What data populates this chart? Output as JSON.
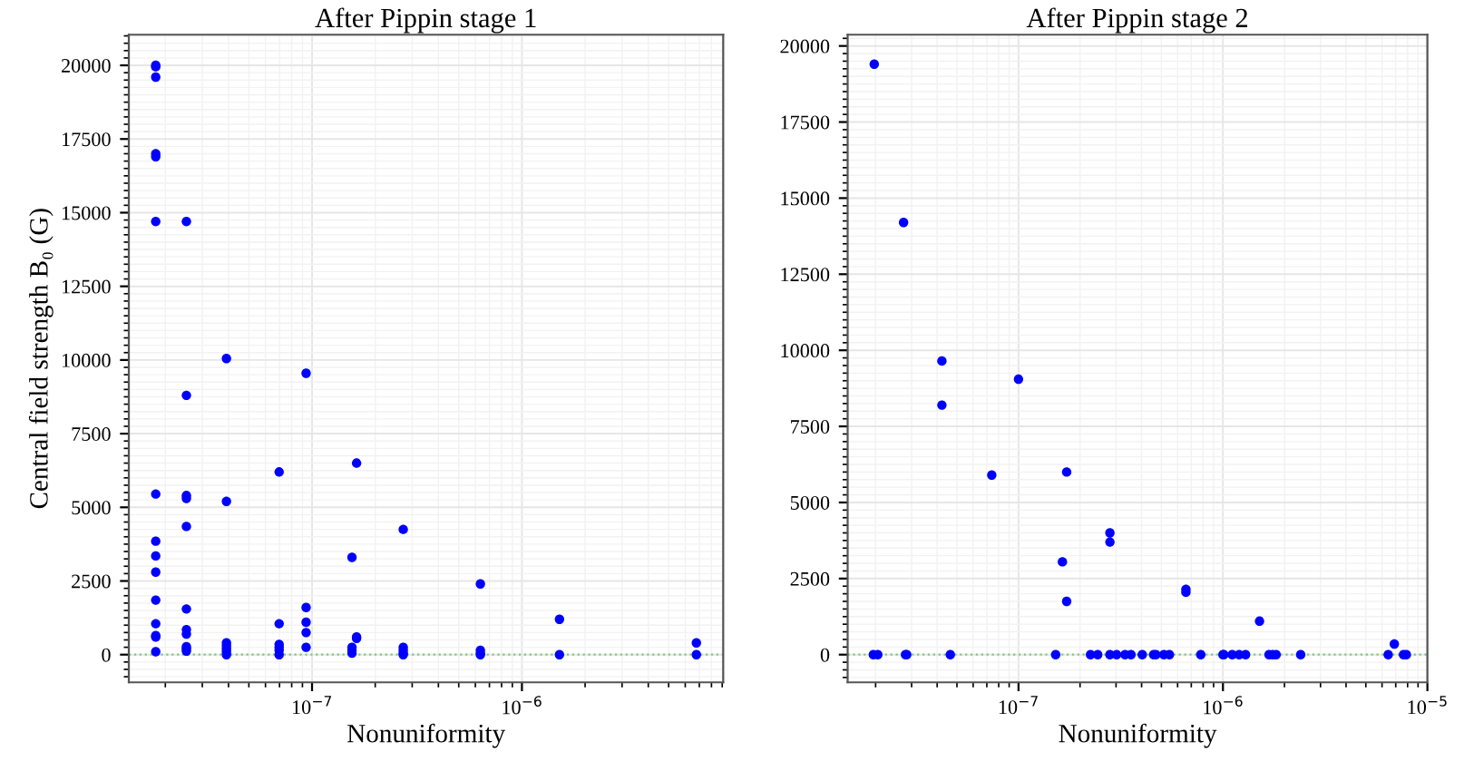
{
  "chart_data": [
    {
      "type": "scatter",
      "title": "After Pippin stage 1",
      "xlabel": "Nonuniformity",
      "ylabel": "Central field strength B₀ (G)",
      "log": "x",
      "grid": true,
      "marker": "circle",
      "xlim": [
        1.34e-08,
        9.1e-06
      ],
      "ylim": [
        -940,
        21040
      ],
      "xticks": [
        {
          "value": 1e-07,
          "label": "10$^{−7}$"
        },
        {
          "value": 1e-06,
          "label": "10$^{−6}$"
        }
      ],
      "yticks": [
        0,
        2500,
        5000,
        7500,
        10000,
        12500,
        15000,
        17500,
        20000
      ],
      "ref_lines": [
        {
          "axis": "y",
          "value": 0,
          "color": "#7fc97f",
          "line_style": "dotted"
        }
      ],
      "series": [
        {
          "color": "#0000ff",
          "x": [
            1.8e-08,
            1.8e-08,
            1.8e-08,
            1.8e-08,
            1.8e-08,
            1.8e-08,
            1.8e-08,
            1.8e-08,
            1.8e-08,
            1.8e-08,
            1.8e-08,
            1.8e-08,
            1.8e-08,
            1.8e-08,
            1.8e-08,
            2.52e-08,
            2.52e-08,
            2.52e-08,
            2.52e-08,
            2.52e-08,
            2.52e-08,
            2.52e-08,
            2.52e-08,
            2.52e-08,
            2.52e-08,
            2.52e-08,
            3.91e-08,
            3.91e-08,
            3.91e-08,
            3.91e-08,
            3.91e-08,
            3.91e-08,
            3.91e-08,
            6.97e-08,
            6.97e-08,
            6.97e-08,
            6.97e-08,
            6.97e-08,
            6.97e-08,
            9.37e-08,
            9.37e-08,
            9.37e-08,
            9.37e-08,
            9.37e-08,
            1.55e-07,
            1.55e-07,
            1.55e-07,
            1.55e-07,
            1.63e-07,
            1.63e-07,
            1.63e-07,
            2.72e-07,
            2.72e-07,
            2.72e-07,
            2.72e-07,
            2.72e-07,
            6.34e-07,
            6.34e-07,
            6.34e-07,
            6.34e-07,
            1.51e-06,
            1.51e-06,
            6.78e-06,
            6.78e-06
          ],
          "values": [
            20000,
            19950,
            19600,
            17000,
            16900,
            14700,
            5450,
            3850,
            3350,
            2800,
            1850,
            1050,
            650,
            600,
            100,
            14700,
            8800,
            5400,
            5300,
            4350,
            1550,
            850,
            700,
            270,
            200,
            120,
            10050,
            5200,
            400,
            300,
            200,
            100,
            0,
            6200,
            1050,
            350,
            250,
            150,
            0,
            9550,
            1600,
            1100,
            750,
            250,
            3300,
            250,
            150,
            50,
            6500,
            600,
            550,
            4250,
            250,
            150,
            50,
            0,
            2400,
            150,
            50,
            0,
            1200,
            0,
            400,
            0
          ]
        }
      ]
    },
    {
      "type": "scatter",
      "title": "After Pippin stage 2",
      "xlabel": "Nonuniformity",
      "log": "x",
      "grid": true,
      "marker": "circle",
      "xlim": [
        1.46e-08,
        1e-05
      ],
      "ylim": [
        -910,
        20370
      ],
      "xticks": [
        {
          "value": 1e-07,
          "label": "10$^{−7}$"
        },
        {
          "value": 1e-06,
          "label": "10$^{−6}$"
        },
        {
          "value": 1e-05,
          "label": "10$^{−5}$"
        }
      ],
      "yticks": [
        0,
        2500,
        5000,
        7500,
        10000,
        12500,
        15000,
        17500,
        20000
      ],
      "ref_lines": [
        {
          "axis": "y",
          "value": 0,
          "color": "#7fc97f",
          "line_style": "dotted"
        }
      ],
      "series": [
        {
          "color": "#0000ff",
          "x": [
            1.97e-08,
            2.74e-08,
            4.22e-08,
            4.22e-08,
            7.4e-08,
            1e-07,
            1.72e-07,
            1.64e-07,
            1.72e-07,
            2.8e-07,
            2.8e-07,
            6.59e-07,
            6.59e-07,
            1.51e-06,
            6.89e-06,
            1.95e-08,
            2.05e-08,
            2.8e-08,
            2.84e-08,
            4.64e-08,
            1.52e-07,
            2.25e-07,
            2.44e-07,
            2.8e-07,
            3.02e-07,
            3.32e-07,
            3.55e-07,
            4.03e-07,
            4.58e-07,
            4.7e-07,
            5.14e-07,
            5.47e-07,
            7.79e-07,
            1e-06,
            1.01e-06,
            1.11e-06,
            1.2e-06,
            1.29e-06,
            1.68e-06,
            1.75e-06,
            1.82e-06,
            2.4e-06,
            6.43e-06,
            7.64e-06,
            7.89e-06
          ],
          "values": [
            19400,
            14200,
            9650,
            8200,
            5900,
            9050,
            6000,
            3050,
            1750,
            4000,
            3700,
            2150,
            2050,
            1100,
            350,
            0,
            0,
            0,
            0,
            0,
            0,
            0,
            0,
            0,
            0,
            0,
            0,
            0,
            0,
            0,
            0,
            0,
            0,
            0,
            0,
            0,
            0,
            0,
            0,
            0,
            0,
            0,
            0,
            0,
            0
          ]
        }
      ]
    }
  ]
}
